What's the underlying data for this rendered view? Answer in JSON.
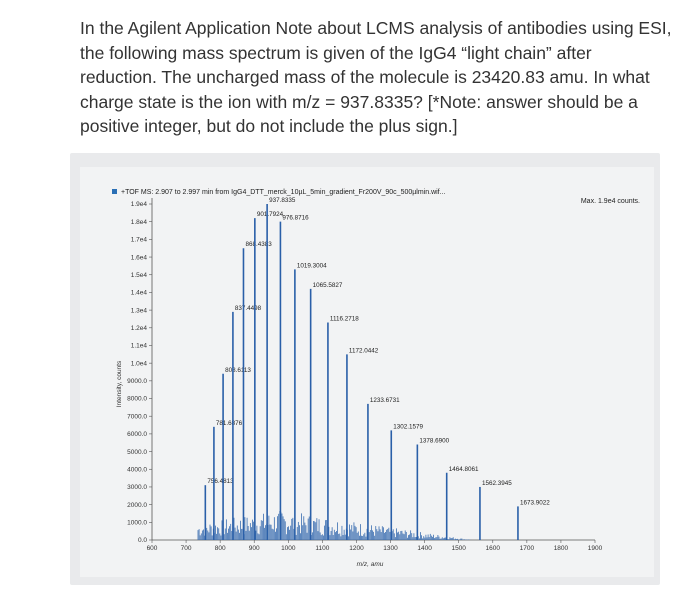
{
  "question": {
    "lines": [
      "In the Agilent Application Note about LCMS analysis of antibodies using ESI,",
      "the following mass spectrum is given of the IgG4 “light chain” after",
      "reduction. The uncharged mass of the molecule is 23420.83 amu.  In what",
      "charge state is the ion with m/z = 937.8335? [*Note: answer should be a",
      "positive integer, but do not include the plus sign.]"
    ]
  },
  "chart_data": {
    "type": "bar",
    "title": "+TOF MS: 2.907 to 2.997 min from IgG4_DTT_merck_10µL_5min_gradient_Fr200V_90c_500µlmin.wif...",
    "max_label": "Max. 1.9e4 counts.",
    "xlabel": "m/z, amu",
    "ylabel": "Intensity, counts",
    "xlim": [
      600,
      1900
    ],
    "ylim": [
      0,
      19000
    ],
    "x_ticks": [
      "600",
      "700",
      "800",
      "900",
      "1000",
      "1100",
      "1200",
      "1300",
      "1400",
      "1500",
      "1600",
      "1700",
      "1800",
      "1900"
    ],
    "y_ticks": [
      "0.0",
      "1000.0",
      "2000.0",
      "3000.0",
      "4000.0",
      "5000.0",
      "6000.0",
      "7000.0",
      "8000.0",
      "9000.0",
      "1.0e4",
      "1.1e4",
      "1.2e4",
      "1.3e4",
      "1.4e4",
      "1.5e4",
      "1.6e4",
      "1.7e4",
      "1.8e4",
      "1.9e4"
    ],
    "peaks": [
      {
        "label": "756.4813",
        "x": 756.48,
        "y": 3100
      },
      {
        "label": "781.6876",
        "x": 781.69,
        "y": 6400
      },
      {
        "label": "808.6113",
        "x": 808.61,
        "y": 9400
      },
      {
        "label": "837.4498",
        "x": 837.45,
        "y": 12900
      },
      {
        "label": "868.4383",
        "x": 868.44,
        "y": 16500
      },
      {
        "label": "901.7924",
        "x": 901.79,
        "y": 18200
      },
      {
        "label": "937.8335",
        "x": 937.83,
        "y": 19000
      },
      {
        "label": "976.8716",
        "x": 976.87,
        "y": 18000
      },
      {
        "label": "1019.3004",
        "x": 1019.3,
        "y": 15300
      },
      {
        "label": "1065.5827",
        "x": 1065.58,
        "y": 14200
      },
      {
        "label": "1116.2718",
        "x": 1116.27,
        "y": 12300
      },
      {
        "label": "1172.0442",
        "x": 1172.04,
        "y": 10500
      },
      {
        "label": "1233.6731",
        "x": 1233.67,
        "y": 7700
      },
      {
        "label": "1302.1579",
        "x": 1302.16,
        "y": 6200
      },
      {
        "label": "1378.6900",
        "x": 1378.69,
        "y": 5400
      },
      {
        "label": "1464.8061",
        "x": 1464.81,
        "y": 3800
      },
      {
        "label": "1562.3945",
        "x": 1562.39,
        "y": 3000
      },
      {
        "label": "1673.9022",
        "x": 1673.9,
        "y": 1900
      }
    ]
  }
}
